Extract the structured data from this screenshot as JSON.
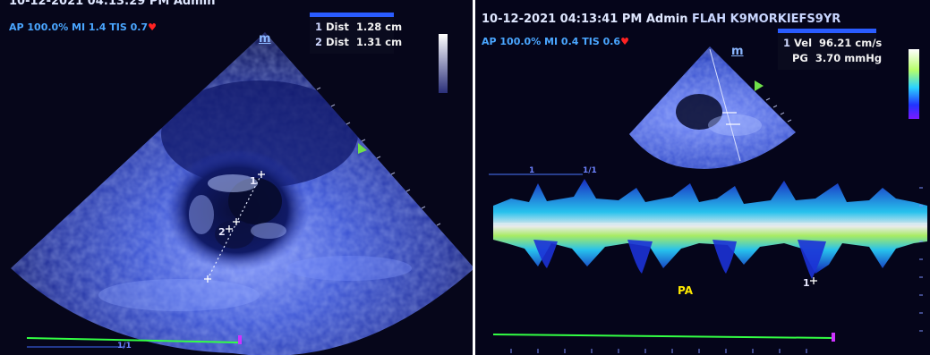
{
  "left": {
    "header": "10-12-2021 04:13:29 PM  Admin",
    "ap_line": "AP 100.0%  MI 1.4  TIS 0.7",
    "m_marker": "m",
    "measurements": [
      {
        "index": "1",
        "label": "Dist",
        "value": "1.28 cm"
      },
      {
        "index": "2",
        "label": "Dist",
        "value": "1.31 cm"
      }
    ],
    "caliper_labels": [
      "1",
      "2"
    ],
    "scale_label": "1/1"
  },
  "right": {
    "header_datetime": "10-12-2021 04:13:41 PM  Admin",
    "header_patient": "FLAH K9MORKIEFS9YR",
    "ap_line": "AP 100.0%  MI 0.4  TIS 0.6",
    "m_marker": "m",
    "measurements": [
      {
        "index": "1",
        "label": "Vel",
        "value": "96.21 cm/s"
      },
      {
        "index": "",
        "label": "PG",
        "value": "3.70 mmHg"
      }
    ],
    "doppler_label": "PA",
    "caliper_label": "1",
    "scale_marks": [
      "1",
      "1/1"
    ]
  },
  "colors": {
    "background": "#06061a",
    "ultrasound_blue": "#3a55d8",
    "ap_text": "#4aa6ff",
    "heart": "#ff2222",
    "box_top": "#2a5cff",
    "pa_label": "#ffea00",
    "baseline": "#22ff44"
  }
}
